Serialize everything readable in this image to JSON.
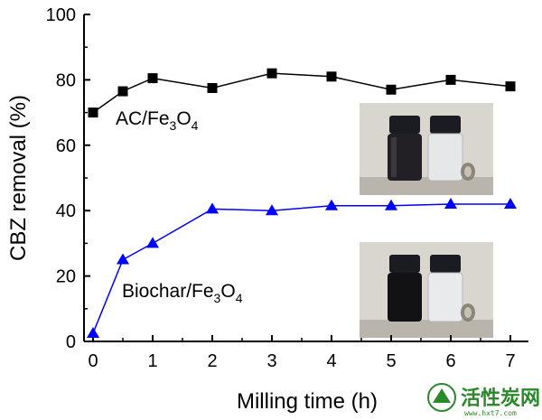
{
  "chart_data": {
    "type": "line",
    "title": "",
    "xlabel": "Milling time (h)",
    "ylabel": "CBZ removal (%)",
    "xlim": [
      -0.15,
      7.5
    ],
    "ylim": [
      0,
      100
    ],
    "xticks": [
      "0",
      "1",
      "2",
      "3",
      "4",
      "5",
      "6",
      "7"
    ],
    "yticks": [
      "0",
      "20",
      "40",
      "60",
      "80",
      "100"
    ],
    "grid": false,
    "series": [
      {
        "name_parts": [
          "AC/Fe",
          "3",
          "O",
          "4"
        ],
        "marker": "square",
        "color": "#000000",
        "x": [
          0,
          0.5,
          1,
          2,
          3,
          4,
          5,
          6,
          7
        ],
        "y": [
          70,
          76.5,
          80.5,
          77.5,
          82,
          81,
          77,
          80,
          78
        ]
      },
      {
        "name_parts": [
          "Biochar/Fe",
          "3",
          "O",
          "4"
        ],
        "marker": "triangle",
        "color": "#0000ff",
        "x": [
          0,
          0.5,
          1,
          2,
          3,
          4,
          5,
          6,
          7
        ],
        "y": [
          2.5,
          25,
          30,
          40.5,
          40,
          41.5,
          41.5,
          42,
          42
        ]
      }
    ],
    "insets": [
      {
        "label": "vial-photo-ac",
        "top_cap": "black",
        "liquid": "dark"
      },
      {
        "label": "vial-photo-biochar",
        "top_cap": "black",
        "liquid": "dark"
      }
    ]
  },
  "watermark": {
    "text": "活性炭网",
    "url": "www.hxt7.com"
  }
}
